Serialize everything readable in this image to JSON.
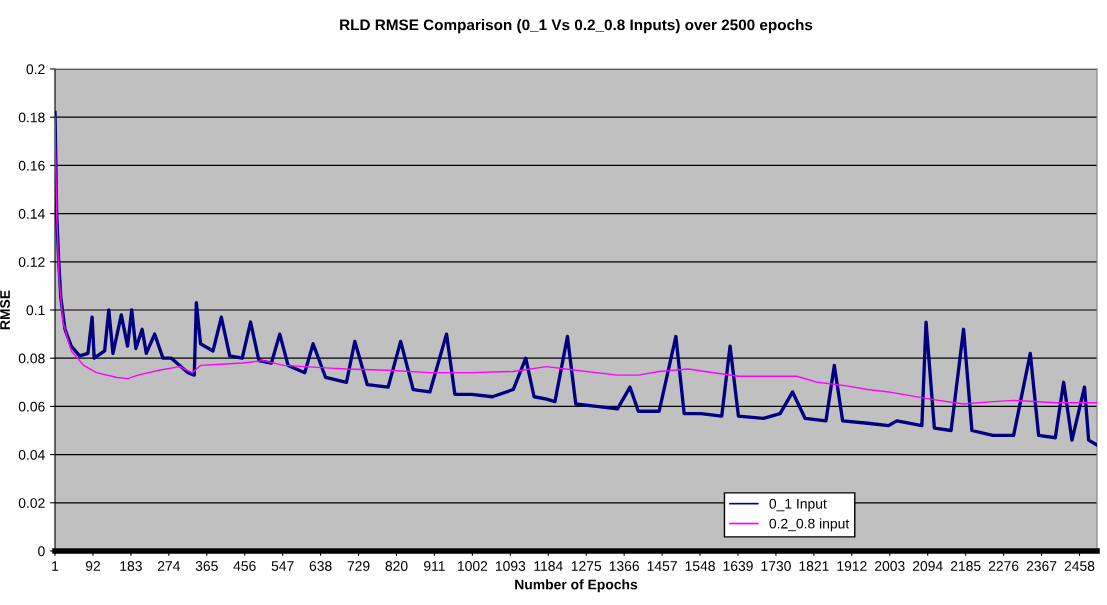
{
  "chart_data": {
    "type": "line",
    "title": "RLD RMSE Comparison (0_1 Vs 0.2_0.8 Inputs) over 2500 epochs",
    "xlabel": "Number of Epochs",
    "ylabel": "RMSE",
    "xlim": [
      1,
      2500
    ],
    "xticks": [
      1,
      92,
      183,
      274,
      365,
      456,
      547,
      638,
      729,
      820,
      911,
      1002,
      1093,
      1184,
      1275,
      1366,
      1457,
      1548,
      1639,
      1730,
      1821,
      1912,
      2003,
      2094,
      2185,
      2276,
      2367,
      2458
    ],
    "ylim": [
      0,
      0.2
    ],
    "yticks": [
      0,
      0.02,
      0.04,
      0.06,
      0.08,
      0.1,
      0.12,
      0.14,
      0.16,
      0.18,
      0.2
    ],
    "grid": "y",
    "legend": "bottom",
    "marker": "none",
    "line_style": "solid",
    "series": [
      {
        "name": "0_1 Input",
        "color": "#000080",
        "x": [
          1,
          5,
          10,
          15,
          25,
          40,
          60,
          80,
          90,
          95,
          120,
          130,
          140,
          160,
          175,
          185,
          195,
          210,
          220,
          240,
          260,
          280,
          300,
          320,
          335,
          340,
          350,
          380,
          400,
          420,
          450,
          470,
          490,
          520,
          540,
          560,
          600,
          620,
          650,
          700,
          720,
          750,
          800,
          830,
          860,
          900,
          940,
          960,
          1000,
          1050,
          1100,
          1130,
          1150,
          1180,
          1200,
          1230,
          1250,
          1300,
          1350,
          1380,
          1400,
          1450,
          1490,
          1510,
          1550,
          1600,
          1620,
          1640,
          1700,
          1740,
          1770,
          1800,
          1850,
          1870,
          1890,
          1950,
          2000,
          2020,
          2080,
          2090,
          2110,
          2150,
          2180,
          2200,
          2250,
          2300,
          2340,
          2360,
          2400,
          2420,
          2440,
          2470,
          2480,
          2500
        ],
        "values": [
          0.182,
          0.14,
          0.12,
          0.105,
          0.092,
          0.085,
          0.081,
          0.082,
          0.097,
          0.08,
          0.083,
          0.1,
          0.082,
          0.098,
          0.085,
          0.1,
          0.084,
          0.092,
          0.082,
          0.09,
          0.08,
          0.08,
          0.077,
          0.074,
          0.073,
          0.103,
          0.086,
          0.083,
          0.097,
          0.081,
          0.08,
          0.095,
          0.079,
          0.078,
          0.09,
          0.077,
          0.074,
          0.086,
          0.072,
          0.07,
          0.087,
          0.069,
          0.068,
          0.087,
          0.067,
          0.066,
          0.09,
          0.065,
          0.065,
          0.064,
          0.067,
          0.08,
          0.064,
          0.063,
          0.062,
          0.089,
          0.061,
          0.06,
          0.059,
          0.068,
          0.058,
          0.058,
          0.089,
          0.057,
          0.057,
          0.056,
          0.085,
          0.056,
          0.055,
          0.057,
          0.066,
          0.055,
          0.054,
          0.077,
          0.054,
          0.053,
          0.052,
          0.054,
          0.052,
          0.095,
          0.051,
          0.05,
          0.092,
          0.05,
          0.048,
          0.048,
          0.082,
          0.048,
          0.047,
          0.07,
          0.046,
          0.068,
          0.046,
          0.044
        ]
      },
      {
        "name": "0.2_0.8 input",
        "color": "#ff00ff",
        "x": [
          1,
          5,
          10,
          20,
          40,
          70,
          100,
          150,
          175,
          200,
          250,
          300,
          330,
          350,
          400,
          450,
          500,
          550,
          600,
          650,
          700,
          800,
          900,
          1000,
          1100,
          1180,
          1250,
          1350,
          1400,
          1450,
          1520,
          1560,
          1640,
          1700,
          1780,
          1830,
          1900,
          1950,
          2000,
          2100,
          2180,
          2250,
          2300,
          2400,
          2500
        ],
        "values": [
          0.18,
          0.14,
          0.115,
          0.095,
          0.083,
          0.077,
          0.074,
          0.072,
          0.0715,
          0.073,
          0.075,
          0.0765,
          0.074,
          0.077,
          0.0775,
          0.078,
          0.079,
          0.077,
          0.0765,
          0.076,
          0.0755,
          0.075,
          0.074,
          0.074,
          0.0745,
          0.0765,
          0.075,
          0.073,
          0.073,
          0.0745,
          0.0755,
          0.0745,
          0.0725,
          0.0725,
          0.0725,
          0.07,
          0.0685,
          0.067,
          0.066,
          0.063,
          0.061,
          0.062,
          0.0625,
          0.0615,
          0.0615
        ]
      }
    ]
  }
}
